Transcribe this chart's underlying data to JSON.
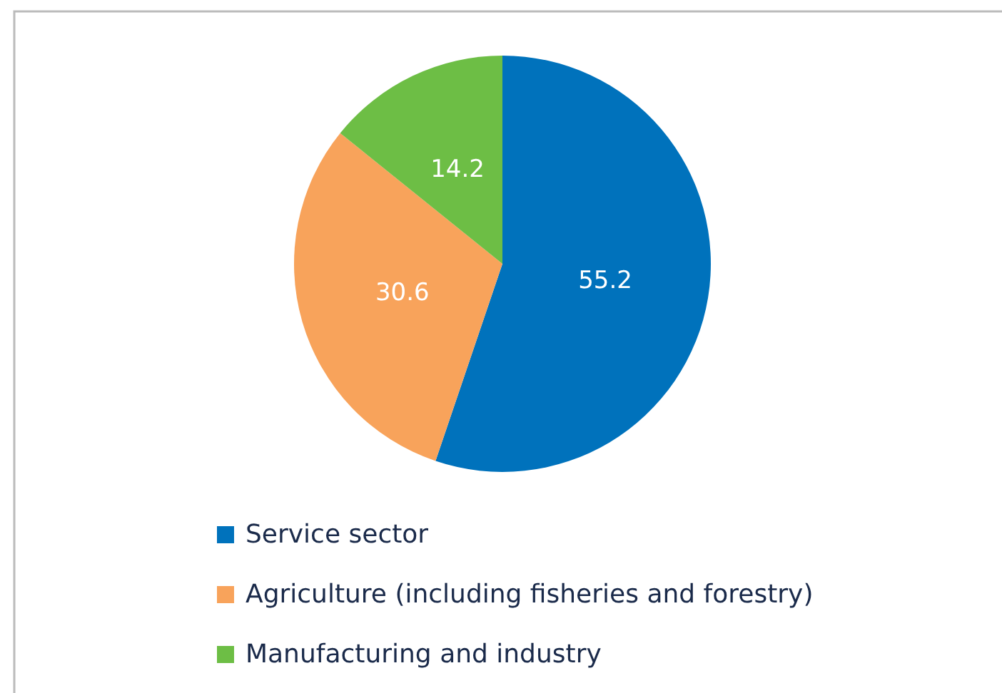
{
  "chart_data": {
    "type": "pie",
    "categories": [
      "Service sector",
      "Agriculture (including fisheries and forestry)",
      "Manufacturing and industry"
    ],
    "values": [
      55.2,
      30.6,
      14.2
    ],
    "colors": [
      "#0072bc",
      "#f8a35b",
      "#6dbe45"
    ],
    "data_labels": true,
    "legend": "bottom"
  }
}
